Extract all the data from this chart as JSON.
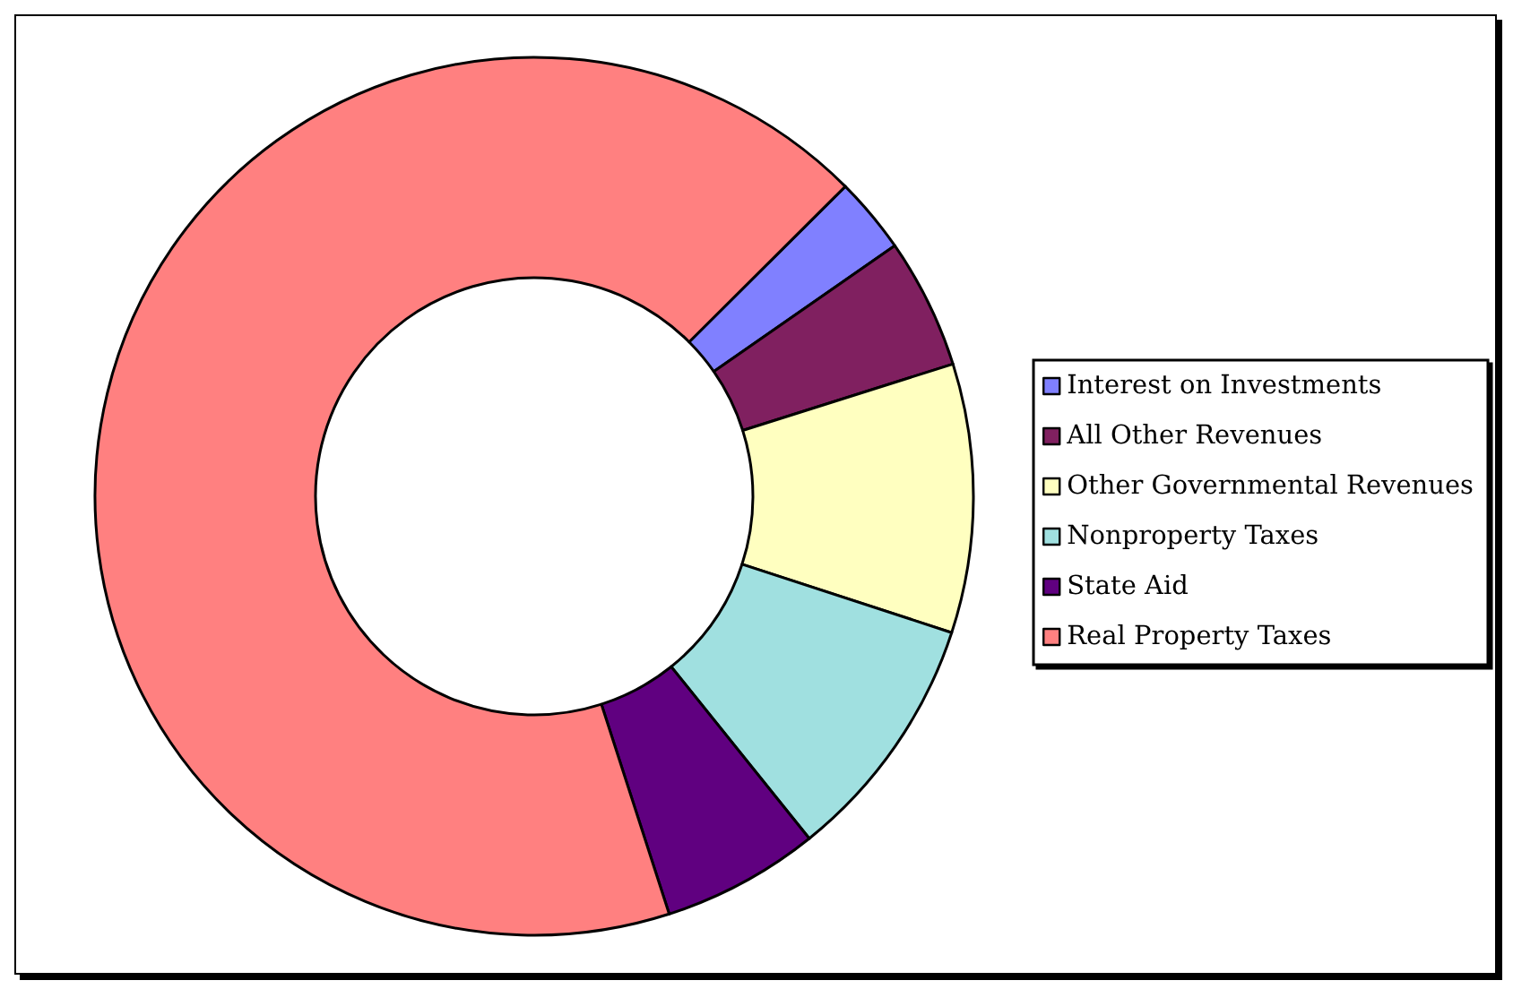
{
  "chart_data": {
    "type": "donut",
    "categories": [
      "Interest on Investments",
      "All Other Revenues",
      "Other Governmental Revenues",
      "Nonproperty Taxes",
      "State Aid",
      "Real Property Taxes"
    ],
    "values": [
      2.8,
      4.8,
      9.9,
      9.2,
      5.8,
      67.5
    ],
    "colors": [
      "#8080ff",
      "#802060",
      "#ffffc0",
      "#a0e0e0",
      "#600080",
      "#ff8080"
    ],
    "legend": "right"
  }
}
